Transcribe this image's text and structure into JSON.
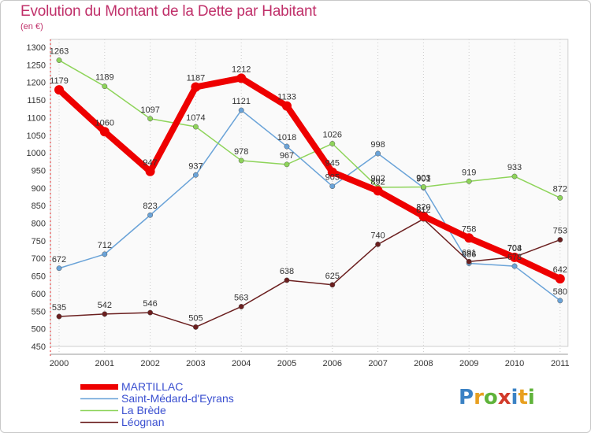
{
  "title": "Evolution du Montant de la Dette par Habitant",
  "subtitle": "(en €)",
  "logo": {
    "text": "Proxiti",
    "colors": [
      "#3b82c4",
      "#e8a020",
      "#5fb33a",
      "#d23a2a",
      "#3b82c4",
      "#e8a020",
      "#5fb33a"
    ]
  },
  "chart_data": {
    "type": "line",
    "x": [
      "2000",
      "2001",
      "2002",
      "2003",
      "2004",
      "2005",
      "2006",
      "2007",
      "2008",
      "2009",
      "2010",
      "2011"
    ],
    "ylim": [
      450,
      1300
    ],
    "yticks": [
      450,
      500,
      550,
      600,
      650,
      700,
      750,
      800,
      850,
      900,
      950,
      1000,
      1050,
      1100,
      1150,
      1200,
      1250,
      1300
    ],
    "grid": "vertical dotted",
    "legend_position": "bottom-left",
    "series": [
      {
        "name": "MARTILLAC",
        "color": "#ee0000",
        "width": 8,
        "values": [
          1179,
          1060,
          947,
          1187,
          1212,
          1133,
          945,
          892,
          820,
          758,
          703,
          642
        ]
      },
      {
        "name": "Saint-Médard-d'Eyrans",
        "color": "#6aa3d8",
        "width": 1.5,
        "values": [
          672,
          712,
          823,
          937,
          1121,
          1018,
          905,
          998,
          901,
          686,
          678,
          580
        ]
      },
      {
        "name": "La Brède",
        "color": "#8ed45a",
        "width": 1.5,
        "values": [
          1263,
          1189,
          1097,
          1074,
          978,
          967,
          1026,
          902,
          903,
          919,
          933,
          872
        ]
      },
      {
        "name": "Léognan",
        "color": "#6b1f1f",
        "width": 1.5,
        "values": [
          535,
          542,
          546,
          505,
          563,
          638,
          625,
          740,
          812,
          691,
          704,
          753
        ]
      }
    ]
  }
}
